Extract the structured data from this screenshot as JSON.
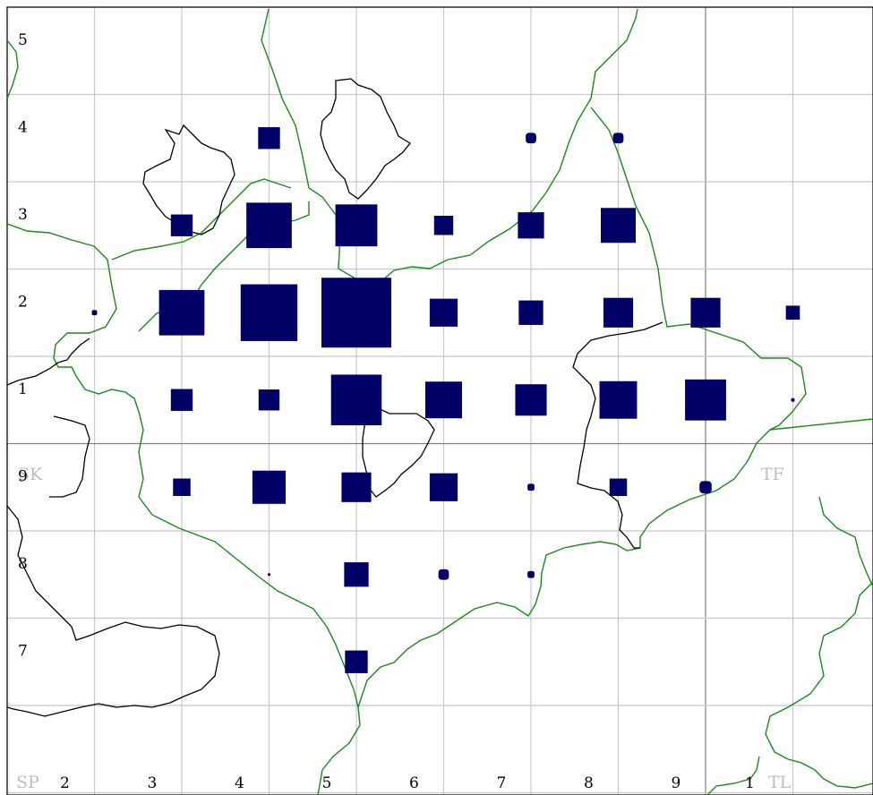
{
  "map": {
    "colors": {
      "marker": "#000066",
      "boundary": "#1a8a1a",
      "outline": "#000000",
      "grid": "#c8c8c8"
    },
    "square_labels": {
      "nw": "SK",
      "ne": "TF",
      "sw": "SP",
      "se": "TL"
    },
    "bottom_labels": [
      "2",
      "3",
      "4",
      "5",
      "6",
      "7",
      "8",
      "9",
      "1"
    ],
    "left_labels": [
      "5",
      "4",
      "3",
      "2",
      "1",
      "9",
      "8",
      "7"
    ],
    "records": [
      {
        "col": 4.4,
        "row": 3.5,
        "size": 0.25
      },
      {
        "col": 7.4,
        "row": 3.5,
        "size": 0.12
      },
      {
        "col": 8.4,
        "row": 3.5,
        "size": 0.12
      },
      {
        "col": 3.4,
        "row": 2.5,
        "size": 0.25
      },
      {
        "col": 4.4,
        "row": 2.5,
        "size": 0.52
      },
      {
        "col": 5.4,
        "row": 2.5,
        "size": 0.48
      },
      {
        "col": 6.4,
        "row": 2.5,
        "size": 0.22
      },
      {
        "col": 7.4,
        "row": 2.5,
        "size": 0.3
      },
      {
        "col": 8.4,
        "row": 2.5,
        "size": 0.4
      },
      {
        "col": 2.4,
        "row": 1.5,
        "size": 0.06
      },
      {
        "col": 3.4,
        "row": 1.5,
        "size": 0.52
      },
      {
        "col": 4.4,
        "row": 1.5,
        "size": 0.65
      },
      {
        "col": 5.4,
        "row": 1.5,
        "size": 0.8
      },
      {
        "col": 6.4,
        "row": 1.5,
        "size": 0.32
      },
      {
        "col": 7.4,
        "row": 1.5,
        "size": 0.28
      },
      {
        "col": 8.4,
        "row": 1.5,
        "size": 0.34
      },
      {
        "col": 9.4,
        "row": 1.5,
        "size": 0.34
      },
      {
        "col": 10.4,
        "row": 1.5,
        "size": 0.16
      },
      {
        "col": 3.4,
        "row": 0.5,
        "size": 0.25
      },
      {
        "col": 4.4,
        "row": 0.5,
        "size": 0.24
      },
      {
        "col": 5.4,
        "row": 0.5,
        "size": 0.58
      },
      {
        "col": 6.4,
        "row": 0.5,
        "size": 0.42
      },
      {
        "col": 7.4,
        "row": 0.5,
        "size": 0.36
      },
      {
        "col": 8.4,
        "row": 0.5,
        "size": 0.43
      },
      {
        "col": 9.4,
        "row": 0.5,
        "size": 0.47
      },
      {
        "col": 10.4,
        "row": 0.5,
        "size": 0.04
      },
      {
        "col": 3.4,
        "row": -0.5,
        "size": 0.2
      },
      {
        "col": 4.4,
        "row": -0.5,
        "size": 0.38
      },
      {
        "col": 5.4,
        "row": -0.5,
        "size": 0.34
      },
      {
        "col": 6.4,
        "row": -0.5,
        "size": 0.32
      },
      {
        "col": 7.4,
        "row": -0.5,
        "size": 0.08
      },
      {
        "col": 8.4,
        "row": -0.5,
        "size": 0.2
      },
      {
        "col": 9.4,
        "row": -0.5,
        "size": 0.14
      },
      {
        "col": 4.4,
        "row": -1.5,
        "size": 0.03
      },
      {
        "col": 5.4,
        "row": -1.5,
        "size": 0.28
      },
      {
        "col": 6.4,
        "row": -1.5,
        "size": 0.12
      },
      {
        "col": 7.4,
        "row": -1.5,
        "size": 0.08
      },
      {
        "col": 5.4,
        "row": -2.5,
        "size": 0.26
      }
    ]
  }
}
